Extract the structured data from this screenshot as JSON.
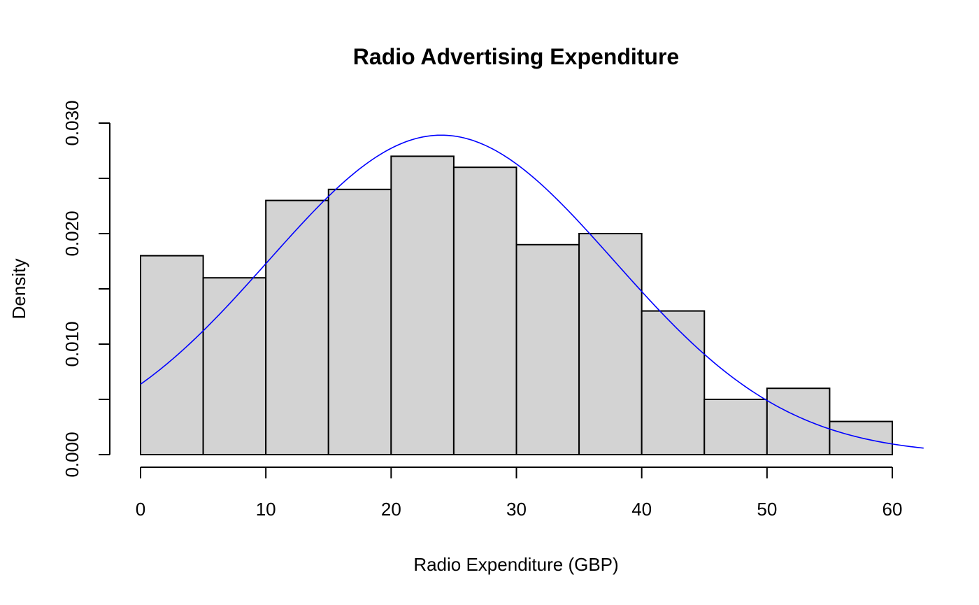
{
  "chart_data": {
    "type": "bar",
    "title": "Radio Advertising Expenditure",
    "xlabel": "Radio Expenditure (GBP)",
    "ylabel": "Density",
    "xlim": [
      0,
      62.5
    ],
    "ylim": [
      0,
      0.03
    ],
    "x_ticks": [
      0,
      10,
      20,
      30,
      40,
      50,
      60
    ],
    "x_tick_labels": [
      "0",
      "10",
      "20",
      "30",
      "40",
      "50",
      "60"
    ],
    "y_ticks": [
      0,
      0.005,
      0.01,
      0.015,
      0.02,
      0.025,
      0.03
    ],
    "y_tick_labels": [
      "0.000",
      "",
      "0.010",
      "",
      "0.020",
      "",
      "0.030"
    ],
    "histogram": {
      "bin_edges": [
        0,
        5,
        10,
        15,
        20,
        25,
        30,
        35,
        40,
        45,
        50,
        55,
        60
      ],
      "density": [
        0.018,
        0.016,
        0.023,
        0.024,
        0.027,
        0.026,
        0.019,
        0.02,
        0.013,
        0.005,
        0.006,
        0.003
      ],
      "fill_color": "#d3d3d3",
      "edge_color": "#000000"
    },
    "density_curve": {
      "kind": "normal",
      "mean": 24.0,
      "sd": 13.8,
      "x_range": [
        0,
        62.5
      ],
      "color": "#0000ff"
    },
    "grid": false,
    "legend": "none"
  }
}
